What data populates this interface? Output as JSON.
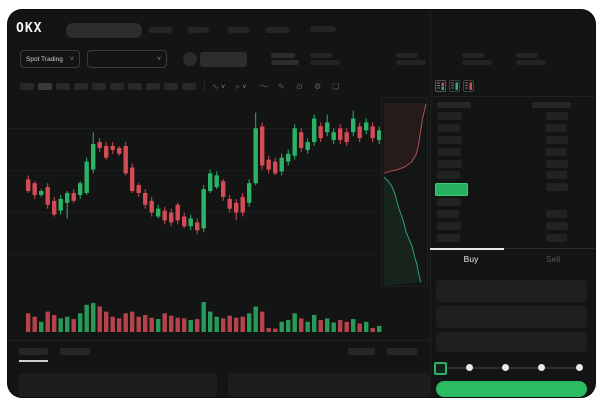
{
  "app": {
    "logo_text": "OKX",
    "market_selector_label": "Spot Trading",
    "buy_tab_label": "Buy",
    "sell_tab_label": "Sell"
  },
  "icons": {
    "chevron": "˅",
    "indicators": "∿",
    "chart_type": "▹",
    "line_tool": "〜",
    "draw": "✎",
    "snapshot": "⊙",
    "settings": "⚙",
    "fullscreen": "❏"
  },
  "colors": {
    "green": "#2CB266",
    "red": "#D24B55",
    "buy_button": "#2CBA63",
    "last_price_bg": "#27B15E",
    "app_bg": "#131414"
  },
  "order_book": {
    "view_modes": [
      "book-both",
      "book-bids",
      "book-asks"
    ],
    "ask_rows": 6,
    "bid_rows": 4
  },
  "chart_data": {
    "type": "candlestick",
    "title": "",
    "note": "Skeleton trading UI: no numeric price/time labels are rendered; candle and volume values are normalized percentages of the pane (0 = top of pane for candles, 100 = full height for volume).",
    "grid": "horizontal",
    "gridline_pct": [
      17,
      38.5,
      60,
      81
    ],
    "candles_format": [
      "body_top_pct",
      "body_bottom_pct",
      "wick_top_pct",
      "wick_bottom_pct",
      "color"
    ],
    "candles": [
      [
        43,
        49,
        41,
        50,
        "r"
      ],
      [
        45,
        51,
        44,
        53,
        "r"
      ],
      [
        49,
        51,
        48,
        52,
        "g"
      ],
      [
        47,
        56,
        45,
        58,
        "r"
      ],
      [
        54,
        61,
        52,
        62,
        "r"
      ],
      [
        53,
        59,
        51,
        61,
        "g"
      ],
      [
        50,
        55,
        49,
        63,
        "g"
      ],
      [
        50,
        54,
        48,
        55,
        "r"
      ],
      [
        45,
        51,
        44,
        53,
        "g"
      ],
      [
        34,
        50,
        32,
        51,
        "g"
      ],
      [
        25,
        38,
        19,
        40,
        "g"
      ],
      [
        24,
        27,
        22,
        29,
        "r"
      ],
      [
        26,
        32,
        24,
        33,
        "r"
      ],
      [
        26,
        28,
        24,
        30,
        "r"
      ],
      [
        27,
        30,
        26,
        31,
        "r"
      ],
      [
        26,
        40,
        24,
        41,
        "r"
      ],
      [
        37,
        49,
        35,
        50,
        "r"
      ],
      [
        46,
        50,
        45,
        52,
        "r"
      ],
      [
        50,
        56,
        48,
        58,
        "r"
      ],
      [
        54,
        60,
        52,
        62,
        "r"
      ],
      [
        58,
        62,
        56,
        63,
        "g"
      ],
      [
        59,
        64,
        57,
        66,
        "r"
      ],
      [
        60,
        65,
        58,
        67,
        "r"
      ],
      [
        56,
        64,
        55,
        66,
        "r"
      ],
      [
        62,
        67,
        60,
        68,
        "r"
      ],
      [
        63,
        67,
        61,
        69,
        "g"
      ],
      [
        65,
        69,
        63,
        71,
        "r"
      ],
      [
        48,
        68,
        46,
        70,
        "g"
      ],
      [
        40,
        49,
        38,
        50,
        "g"
      ],
      [
        41,
        47,
        39,
        48,
        "g"
      ],
      [
        44,
        52,
        43,
        54,
        "r"
      ],
      [
        53,
        58,
        51,
        60,
        "r"
      ],
      [
        55,
        60,
        53,
        64,
        "r"
      ],
      [
        52,
        60,
        50,
        62,
        "r"
      ],
      [
        45,
        55,
        43,
        57,
        "g"
      ],
      [
        17,
        45,
        9,
        46,
        "g"
      ],
      [
        16,
        36,
        14,
        38,
        "r"
      ],
      [
        33,
        38,
        31,
        40,
        "r"
      ],
      [
        34,
        40,
        32,
        41,
        "r"
      ],
      [
        32,
        39,
        30,
        41,
        "g"
      ],
      [
        30,
        34,
        28,
        36,
        "g"
      ],
      [
        17,
        31,
        15,
        33,
        "g"
      ],
      [
        19,
        27,
        17,
        29,
        "r"
      ],
      [
        24,
        28,
        22,
        30,
        "g"
      ],
      [
        12,
        24,
        10,
        26,
        "g"
      ],
      [
        16,
        22,
        14,
        24,
        "r"
      ],
      [
        14,
        19,
        10,
        21,
        "g"
      ],
      [
        19,
        23,
        17,
        25,
        "g"
      ],
      [
        17,
        23,
        15,
        25,
        "r"
      ],
      [
        19,
        24,
        17,
        26,
        "r"
      ],
      [
        12,
        19,
        8,
        21,
        "g"
      ],
      [
        16,
        22,
        14,
        24,
        "r"
      ],
      [
        14,
        18,
        12,
        20,
        "g"
      ],
      [
        16,
        22,
        14,
        24,
        "r"
      ],
      [
        18,
        23,
        16,
        25,
        "g"
      ]
    ],
    "volume_pct": [
      55,
      45,
      30,
      60,
      50,
      40,
      45,
      38,
      55,
      80,
      85,
      75,
      60,
      45,
      40,
      55,
      60,
      45,
      50,
      42,
      38,
      55,
      48,
      42,
      40,
      35,
      38,
      88,
      60,
      45,
      40,
      48,
      42,
      45,
      55,
      75,
      60,
      12,
      10,
      30,
      35,
      55,
      40,
      30,
      50,
      35,
      40,
      28,
      35,
      30,
      38,
      25,
      30,
      12,
      18
    ],
    "depth": {
      "asks": [
        [
          0.98,
          0.03
        ],
        [
          0.94,
          0.07
        ],
        [
          0.9,
          0.11
        ],
        [
          0.87,
          0.16
        ],
        [
          0.84,
          0.2
        ],
        [
          0.81,
          0.25
        ],
        [
          0.76,
          0.3
        ],
        [
          0.66,
          0.34
        ],
        [
          0.52,
          0.365
        ],
        [
          0.36,
          0.38
        ],
        [
          0.18,
          0.39
        ],
        [
          0.04,
          0.4
        ]
      ],
      "bids": [
        [
          0.04,
          0.42
        ],
        [
          0.13,
          0.44
        ],
        [
          0.22,
          0.47
        ],
        [
          0.29,
          0.51
        ],
        [
          0.33,
          0.55
        ],
        [
          0.38,
          0.59
        ],
        [
          0.44,
          0.63
        ],
        [
          0.49,
          0.67
        ],
        [
          0.53,
          0.71
        ],
        [
          0.6,
          0.75
        ],
        [
          0.67,
          0.79
        ],
        [
          0.72,
          0.84
        ],
        [
          0.78,
          0.89
        ],
        [
          0.82,
          0.94
        ],
        [
          0.86,
          0.98
        ]
      ]
    }
  }
}
